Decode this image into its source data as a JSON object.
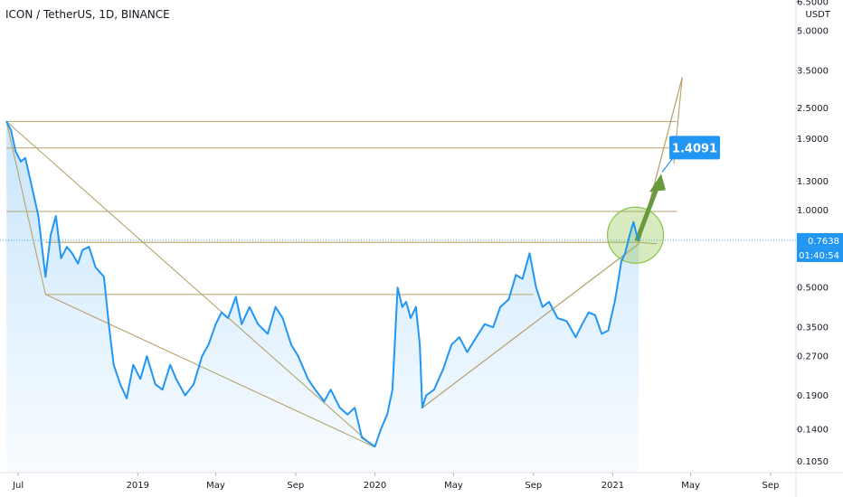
{
  "chart_data": {
    "type": "line",
    "title": "ICON / TetherUS, 1D, BINANCE",
    "y_unit": "USDT",
    "y_scale": "log",
    "ylim": [
      0.095,
      6.6
    ],
    "x_range": [
      "2018-06-03",
      "2021-10-10"
    ],
    "y_ticks": [
      "6.5000",
      "5.0000",
      "3.5000",
      "2.5000",
      "1.9000",
      "1.3000",
      "1.0000",
      "0.5000",
      "0.3500",
      "0.2700",
      "0.1900",
      "0.1400",
      "0.1050"
    ],
    "x_ticks": [
      {
        "label": "Jul",
        "date": "2018-07-01"
      },
      {
        "label": "2019",
        "date": "2019-01-01"
      },
      {
        "label": "May",
        "date": "2019-05-01"
      },
      {
        "label": "Sep",
        "date": "2019-09-01"
      },
      {
        "label": "2020",
        "date": "2020-01-01"
      },
      {
        "label": "May",
        "date": "2020-05-01"
      },
      {
        "label": "Sep",
        "date": "2020-09-01"
      },
      {
        "label": "2021",
        "date": "2021-01-01"
      },
      {
        "label": "May",
        "date": "2021-05-01"
      },
      {
        "label": "Sep",
        "date": "2021-09-01"
      }
    ],
    "series": [
      {
        "color": "#2196f3",
        "points": [
          [
            "2018-06-13",
            2.22
          ],
          [
            "2018-06-20",
            2.05
          ],
          [
            "2018-06-27",
            1.7
          ],
          [
            "2018-07-05",
            1.55
          ],
          [
            "2018-07-12",
            1.6
          ],
          [
            "2018-07-20",
            1.3
          ],
          [
            "2018-08-01",
            0.95
          ],
          [
            "2018-08-12",
            0.55
          ],
          [
            "2018-08-20",
            0.8
          ],
          [
            "2018-08-28",
            0.95
          ],
          [
            "2018-09-05",
            0.65
          ],
          [
            "2018-09-14",
            0.72
          ],
          [
            "2018-09-22",
            0.68
          ],
          [
            "2018-10-01",
            0.62
          ],
          [
            "2018-10-08",
            0.7
          ],
          [
            "2018-10-18",
            0.72
          ],
          [
            "2018-10-28",
            0.6
          ],
          [
            "2018-11-10",
            0.55
          ],
          [
            "2018-11-18",
            0.35
          ],
          [
            "2018-11-25",
            0.25
          ],
          [
            "2018-12-05",
            0.21
          ],
          [
            "2018-12-15",
            0.185
          ],
          [
            "2018-12-25",
            0.25
          ],
          [
            "2019-01-05",
            0.22
          ],
          [
            "2019-01-15",
            0.27
          ],
          [
            "2019-01-28",
            0.21
          ],
          [
            "2019-02-08",
            0.2
          ],
          [
            "2019-02-20",
            0.25
          ],
          [
            "2019-03-01",
            0.22
          ],
          [
            "2019-03-15",
            0.19
          ],
          [
            "2019-03-28",
            0.21
          ],
          [
            "2019-04-10",
            0.27
          ],
          [
            "2019-04-20",
            0.3
          ],
          [
            "2019-05-01",
            0.36
          ],
          [
            "2019-05-10",
            0.4
          ],
          [
            "2019-05-20",
            0.38
          ],
          [
            "2019-06-01",
            0.46
          ],
          [
            "2019-06-10",
            0.36
          ],
          [
            "2019-06-22",
            0.42
          ],
          [
            "2019-07-05",
            0.36
          ],
          [
            "2019-07-20",
            0.33
          ],
          [
            "2019-08-01",
            0.42
          ],
          [
            "2019-08-12",
            0.38
          ],
          [
            "2019-08-25",
            0.3
          ],
          [
            "2019-09-05",
            0.27
          ],
          [
            "2019-09-20",
            0.22
          ],
          [
            "2019-10-01",
            0.2
          ],
          [
            "2019-10-15",
            0.18
          ],
          [
            "2019-10-25",
            0.2
          ],
          [
            "2019-11-08",
            0.17
          ],
          [
            "2019-11-20",
            0.16
          ],
          [
            "2019-12-01",
            0.17
          ],
          [
            "2019-12-12",
            0.13
          ],
          [
            "2019-12-22",
            0.125
          ],
          [
            "2020-01-01",
            0.12
          ],
          [
            "2020-01-10",
            0.14
          ],
          [
            "2020-01-20",
            0.16
          ],
          [
            "2020-01-28",
            0.2
          ],
          [
            "2020-02-05",
            0.5
          ],
          [
            "2020-02-12",
            0.42
          ],
          [
            "2020-02-18",
            0.44
          ],
          [
            "2020-02-25",
            0.38
          ],
          [
            "2020-03-04",
            0.42
          ],
          [
            "2020-03-10",
            0.3
          ],
          [
            "2020-03-14",
            0.17
          ],
          [
            "2020-03-20",
            0.19
          ],
          [
            "2020-04-01",
            0.2
          ],
          [
            "2020-04-15",
            0.24
          ],
          [
            "2020-04-28",
            0.3
          ],
          [
            "2020-05-10",
            0.32
          ],
          [
            "2020-05-22",
            0.28
          ],
          [
            "2020-06-05",
            0.32
          ],
          [
            "2020-06-18",
            0.36
          ],
          [
            "2020-07-01",
            0.35
          ],
          [
            "2020-07-12",
            0.42
          ],
          [
            "2020-07-25",
            0.45
          ],
          [
            "2020-08-05",
            0.56
          ],
          [
            "2020-08-15",
            0.54
          ],
          [
            "2020-08-26",
            0.68
          ],
          [
            "2020-09-05",
            0.5
          ],
          [
            "2020-09-15",
            0.42
          ],
          [
            "2020-09-25",
            0.44
          ],
          [
            "2020-10-08",
            0.38
          ],
          [
            "2020-10-22",
            0.37
          ],
          [
            "2020-11-05",
            0.32
          ],
          [
            "2020-11-15",
            0.36
          ],
          [
            "2020-11-25",
            0.4
          ],
          [
            "2020-12-05",
            0.39
          ],
          [
            "2020-12-15",
            0.33
          ],
          [
            "2020-12-25",
            0.34
          ],
          [
            "2021-01-04",
            0.44
          ],
          [
            "2021-01-08",
            0.5
          ],
          [
            "2021-01-14",
            0.63
          ],
          [
            "2021-01-20",
            0.68
          ],
          [
            "2021-01-27",
            0.8
          ],
          [
            "2021-02-02",
            0.9
          ],
          [
            "2021-02-07",
            0.8
          ],
          [
            "2021-02-10",
            0.7638
          ]
        ]
      }
    ],
    "annotations": {
      "horizontal_levels": [
        {
          "value": 2.22,
          "from": "2018-06-13",
          "to": "2021-04-10"
        },
        {
          "value": 1.75,
          "from": "2018-06-13",
          "to": "2021-04-10"
        },
        {
          "value": 0.99,
          "from": "2018-06-13",
          "to": "2021-04-10"
        },
        {
          "value": 0.47,
          "from": "2018-08-12",
          "to": "2020-09-01"
        }
      ],
      "trend_lines": [
        {
          "points": [
            [
              "2018-06-13",
              2.22
            ],
            [
              "2018-08-12",
              0.47
            ],
            [
              "2019-12-30",
              0.12
            ],
            [
              "2020-01-01",
              0.12
            ]
          ]
        },
        {
          "points": [
            [
              "2018-06-13",
              2.22
            ],
            [
              "2019-12-30",
              0.12
            ]
          ]
        },
        {
          "points": [
            [
              "2018-08-12",
              0.75
            ],
            [
              "2021-02-10",
              0.75
            ],
            [
              "2021-03-10",
              0.74
            ]
          ]
        },
        {
          "points": [
            [
              "2020-03-14",
              0.17
            ],
            [
              "2021-02-10",
              0.74
            ],
            [
              "2021-04-18",
              3.3
            ]
          ]
        },
        {
          "points": [
            [
              "2020-03-14",
              0.17
            ],
            [
              "2021-02-10",
              0.74
            ],
            [
              "2021-04-18",
              3.3
            ],
            [
              "2021-04-05",
              1.52
            ]
          ]
        }
      ],
      "target_label": "1.4091",
      "target_point": [
        "2021-03-18",
        1.4091
      ],
      "current_price_label": "0.7638",
      "countdown_label": "01:40:54",
      "focus_circle_center": [
        "2021-02-05",
        0.8
      ]
    }
  }
}
